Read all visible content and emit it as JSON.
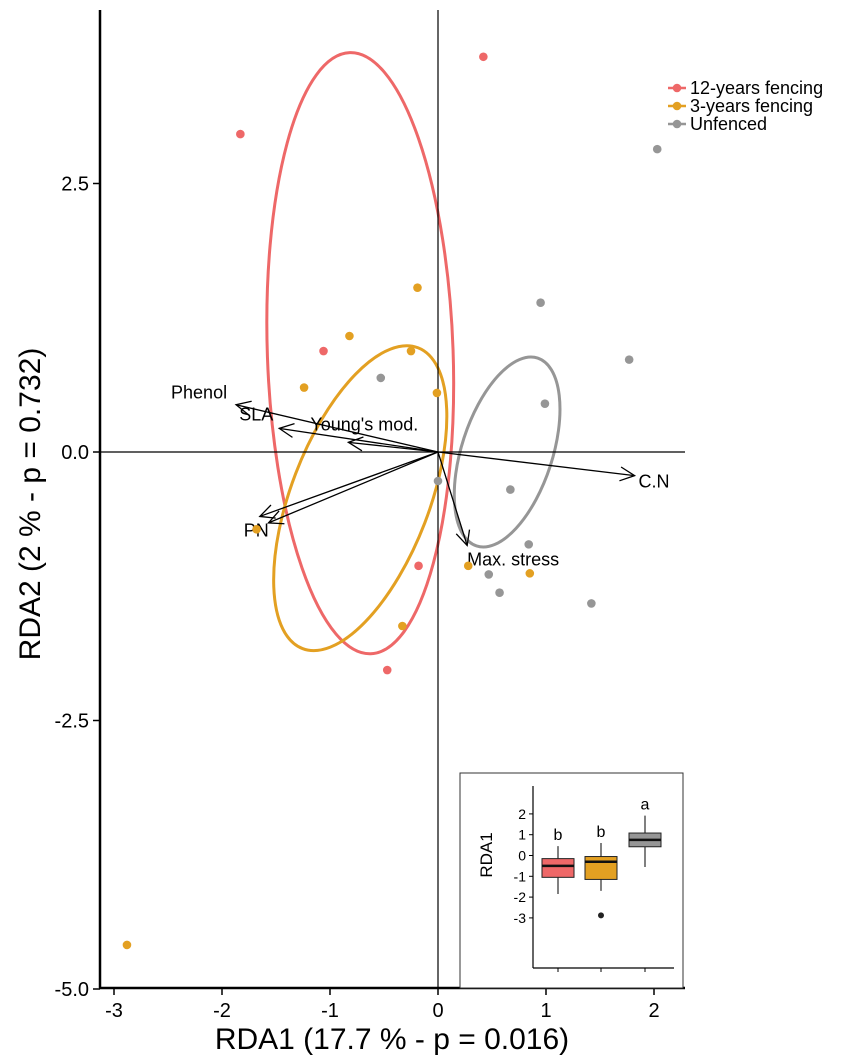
{
  "chart_data": {
    "type": "scatter",
    "title": "",
    "xlabel": "RDA1 (17.7 % - p = 0.016)",
    "ylabel": "RDA2 (2 % - p = 0.732)",
    "xlim": [
      -3.15,
      2.27
    ],
    "ylim": [
      -5.0,
      4.18
    ],
    "xticks": [
      -3,
      -2,
      -1,
      0,
      1,
      2
    ],
    "xtick_labels": [
      "-3",
      "-2",
      "-1",
      "0",
      "1",
      "2"
    ],
    "yticks": [
      -5,
      -2.5,
      0,
      2.5
    ],
    "ytick_labels": [
      "-5.0",
      "-2.5",
      "0.0",
      "2.5"
    ],
    "grid": false,
    "legend_position": "top-right",
    "colors": {
      "g12": "#ee6868",
      "g3": "#e3a022",
      "gu": "#969696"
    },
    "series": [
      {
        "key": "g12",
        "name": "12-years fencing",
        "points": [
          [
            0.42,
            3.68
          ],
          [
            -1.83,
            2.96
          ],
          [
            -1.06,
            0.94
          ],
          [
            -0.18,
            -1.06
          ],
          [
            -0.47,
            -2.03
          ]
        ]
      },
      {
        "key": "g3",
        "name": "3-years fencing",
        "points": [
          [
            -1.68,
            -0.72
          ],
          [
            -1.24,
            0.6
          ],
          [
            -0.82,
            1.08
          ],
          [
            -0.25,
            0.94
          ],
          [
            -0.19,
            1.53
          ],
          [
            -0.01,
            0.55
          ],
          [
            0.28,
            -1.06
          ],
          [
            0.85,
            -1.13
          ],
          [
            -0.33,
            -1.62
          ],
          [
            -2.88,
            -4.59
          ]
        ]
      },
      {
        "key": "gu",
        "name": "Unfenced",
        "points": [
          [
            2.03,
            2.82
          ],
          [
            0.95,
            1.39
          ],
          [
            1.77,
            0.86
          ],
          [
            -0.53,
            0.69
          ],
          [
            0.99,
            0.45
          ],
          [
            0.0,
            -0.27
          ],
          [
            0.67,
            -0.35
          ],
          [
            0.84,
            -0.86
          ],
          [
            0.47,
            -1.14
          ],
          [
            0.57,
            -1.31
          ],
          [
            1.42,
            -1.41
          ]
        ]
      }
    ],
    "ellipses": [
      {
        "key": "g12",
        "cx": -0.72,
        "cy": 0.92,
        "rx": 0.86,
        "ry": 2.8,
        "rot": -2
      },
      {
        "key": "g3",
        "cx": -0.72,
        "cy": -0.43,
        "rx": 0.64,
        "ry": 1.5,
        "rot": 21
      },
      {
        "key": "gu",
        "cx": 0.64,
        "cy": 0.0,
        "rx": 0.42,
        "ry": 0.92,
        "rot": 18
      }
    ],
    "arrows": [
      {
        "label": "Phenol",
        "x": -1.87,
        "y": 0.44
      },
      {
        "label": "SLA",
        "x": -1.47,
        "y": 0.22
      },
      {
        "label": "Young's mod.",
        "x": -0.83,
        "y": 0.09
      },
      {
        "label": "C.N",
        "x": 1.82,
        "y": -0.22
      },
      {
        "label": "PN",
        "x": -1.65,
        "y": -0.6
      },
      {
        "label": "",
        "x": -1.57,
        "y": -0.66
      },
      {
        "label": "Max. stress",
        "x": 0.27,
        "y": -0.87
      }
    ],
    "inset": {
      "type": "box",
      "ylabel": "RDA1",
      "ylim": [
        -3.2,
        2.6
      ],
      "yticks": [
        -3,
        -2,
        -1,
        0,
        1,
        2
      ],
      "ytick_labels": [
        "-3",
        "-2",
        "-1",
        "0",
        "1",
        "2"
      ],
      "boxes": [
        {
          "key": "g12",
          "min": -1.85,
          "q1": -1.05,
          "median": -0.5,
          "q3": -0.15,
          "max": 0.45,
          "letter": "b",
          "outliers": []
        },
        {
          "key": "g3",
          "min": -1.7,
          "q1": -1.15,
          "median": -0.3,
          "q3": -0.05,
          "max": 0.6,
          "letter": "b",
          "outliers": [
            -2.88
          ]
        },
        {
          "key": "gu",
          "min": -0.55,
          "q1": 0.42,
          "median": 0.75,
          "q3": 1.08,
          "max": 1.92,
          "letter": "a",
          "outliers": []
        }
      ]
    }
  }
}
